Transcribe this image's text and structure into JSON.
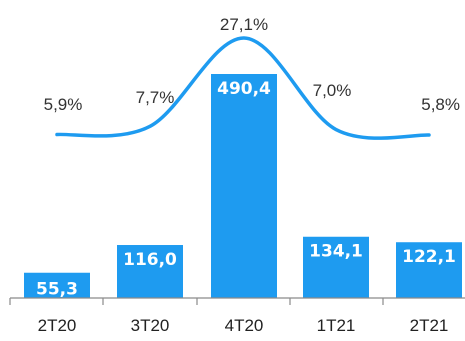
{
  "chart_data": {
    "type": "bar",
    "categories": [
      "2T20",
      "3T20",
      "4T20",
      "1T21",
      "2T21"
    ],
    "series": [
      {
        "values": [
          55.3,
          116.0,
          490.4,
          134.1,
          122.1
        ],
        "labels": [
          "55,3",
          "116,0",
          "490,4",
          "134,1",
          "122,1"
        ]
      },
      {
        "type": "line",
        "values": [
          5.9,
          7.7,
          27.1,
          7.0,
          5.8
        ],
        "labels": [
          "5,9%",
          "7,7%",
          "27,1%",
          "7,0%",
          "5,8%"
        ]
      }
    ],
    "bar_color": "#1E9BF0",
    "line_color": "#1E9BF0"
  }
}
